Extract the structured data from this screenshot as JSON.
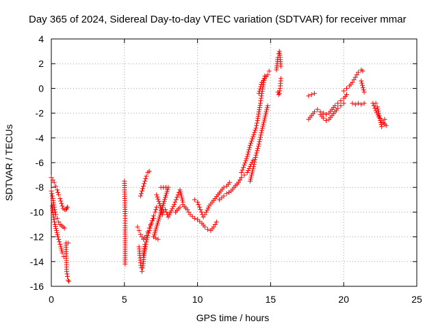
{
  "chart_data": {
    "type": "scatter",
    "title": "Day 365 of 2024, Sidereal Day-to-day VTEC variation (SDTVAR) for receiver mmar",
    "xlabel": "GPS time / hours",
    "ylabel": "SDTVAR / TECUs",
    "xlim": [
      0,
      25
    ],
    "ylim": [
      -16,
      4
    ],
    "xticks": [
      0,
      5,
      10,
      15,
      20,
      25
    ],
    "yticks": [
      -16,
      -14,
      -12,
      -10,
      -8,
      -6,
      -4,
      -2,
      0,
      2,
      4
    ],
    "grid": true,
    "marker": "plus",
    "color": "#ff0000",
    "segments": [
      {
        "x": [
          0.0,
          0.1,
          0.2,
          0.3,
          0.4,
          0.5,
          0.6,
          0.7,
          0.8,
          0.9,
          1.0,
          1.05,
          1.1
        ],
        "y": [
          -7.2,
          -7.4,
          -7.6,
          -7.9,
          -8.2,
          -8.6,
          -8.9,
          -9.3,
          -9.7,
          -9.8,
          -9.8,
          -9.7,
          -9.6
        ]
      },
      {
        "x": [
          0.0,
          0.1,
          0.2,
          0.3,
          0.4,
          0.5,
          0.6,
          0.7,
          0.8,
          0.9
        ],
        "y": [
          -8.3,
          -8.9,
          -9.6,
          -10.2,
          -10.5,
          -10.8,
          -11.0,
          -11.1,
          -11.2,
          -11.3
        ]
      },
      {
        "x": [
          0.05,
          0.15,
          0.25,
          0.35,
          0.45,
          0.55,
          0.65,
          0.75,
          0.85
        ],
        "y": [
          -9.5,
          -10.4,
          -11.0,
          -11.5,
          -12.0,
          -12.4,
          -12.8,
          -13.3,
          -13.6
        ]
      },
      {
        "x": [
          1.0,
          1.05,
          1.1,
          1.15,
          1.2
        ],
        "y": [
          -12.5,
          -14.8,
          -15.2,
          -15.5,
          -15.6
        ]
      },
      {
        "x": [
          1.15
        ],
        "y": [
          -12.5
        ]
      },
      {
        "x": [
          5.0,
          5.05,
          5.05,
          5.05,
          5.05
        ],
        "y": [
          -7.5,
          -10.3,
          -10.9,
          -11.1,
          -14.2
        ]
      },
      {
        "x": [
          5.9,
          6.0,
          6.1,
          6.2,
          6.3,
          6.4,
          6.5,
          6.6,
          6.7,
          6.8,
          6.9,
          7.0
        ],
        "y": [
          -11.2,
          -11.5,
          -11.8,
          -12.0,
          -12.2,
          -12.1,
          -11.9,
          -11.6,
          -11.3,
          -11.0,
          -10.7,
          -10.5
        ]
      },
      {
        "x": [
          6.0,
          6.05,
          6.1,
          6.15,
          6.2,
          6.25,
          6.3,
          6.35,
          6.4
        ],
        "y": [
          -12.8,
          -13.5,
          -14.1,
          -14.5,
          -14.8,
          -14.5,
          -14.0,
          -13.3,
          -12.6
        ]
      },
      {
        "x": [
          6.1,
          6.2,
          6.3,
          6.4,
          6.5,
          6.6,
          6.7
        ],
        "y": [
          -8.7,
          -8.3,
          -7.9,
          -7.5,
          -7.1,
          -6.8,
          -6.7
        ]
      },
      {
        "x": [
          6.3,
          6.4,
          6.5,
          6.6,
          6.7,
          6.8,
          6.9,
          7.0,
          7.1,
          7.2
        ],
        "y": [
          -13.5,
          -13.0,
          -12.4,
          -11.9,
          -11.5,
          -11.1,
          -10.7,
          -10.3,
          -10.0,
          -9.6
        ]
      },
      {
        "x": [
          7.2,
          7.4,
          7.6,
          7.8,
          8.0,
          8.2,
          8.4,
          8.6,
          8.8,
          9.0
        ],
        "y": [
          -8.6,
          -9.3,
          -10.2,
          -9.8,
          -10.4,
          -9.9,
          -9.4,
          -8.8,
          -8.2,
          -9.2
        ]
      },
      {
        "x": [
          7.5,
          8.0,
          7.0,
          7.3
        ],
        "y": [
          -8.0,
          -8.0,
          -12.0,
          -12.2
        ]
      },
      {
        "x": [
          8.5,
          8.8,
          9.0,
          9.3,
          9.5,
          9.8,
          10.0,
          10.3,
          10.5,
          10.7,
          10.9,
          11.1,
          11.3
        ],
        "y": [
          -10.0,
          -9.6,
          -9.4,
          -9.8,
          -10.2,
          -10.5,
          -10.6,
          -10.9,
          -11.2,
          -11.4,
          -11.5,
          -11.2,
          -10.8
        ]
      },
      {
        "x": [
          9.8,
          10.0,
          10.2,
          10.4,
          10.6,
          10.8,
          11.0,
          11.2,
          11.4,
          11.6,
          11.8,
          12.0,
          12.2
        ],
        "y": [
          -9.0,
          -9.2,
          -9.8,
          -10.4,
          -10.0,
          -9.5,
          -9.2,
          -8.9,
          -8.6,
          -8.3,
          -8.0,
          -7.9,
          -7.6
        ]
      },
      {
        "x": [
          11.5,
          11.8,
          12.0,
          12.3,
          12.5,
          12.8,
          13.0,
          13.2,
          13.4,
          13.6,
          13.8
        ],
        "y": [
          -9.0,
          -8.7,
          -8.5,
          -8.3,
          -8.0,
          -7.6,
          -7.2,
          -7.0,
          -6.8,
          -6.3,
          -5.8
        ]
      },
      {
        "x": [
          13.0,
          13.2,
          13.4,
          13.6,
          13.8,
          14.0,
          14.1,
          14.2,
          14.3,
          14.4,
          14.5,
          14.6
        ],
        "y": [
          -6.8,
          -6.2,
          -5.5,
          -4.6,
          -3.9,
          -3.2,
          -2.6,
          -1.9,
          -1.2,
          -0.4,
          0.3,
          1.0
        ]
      },
      {
        "x": [
          13.6,
          13.8,
          14.0,
          14.2,
          14.4,
          14.6,
          14.8
        ],
        "y": [
          -7.5,
          -6.5,
          -5.4,
          -4.5,
          -3.4,
          -2.4,
          -1.4
        ]
      },
      {
        "x": [
          14.2,
          14.4,
          14.6,
          14.8,
          14.9
        ],
        "y": [
          -0.4,
          0.5,
          0.8,
          1.1,
          1.4
        ]
      },
      {
        "x": [
          15.4,
          15.45,
          15.5,
          15.55,
          15.6,
          15.65,
          15.7
        ],
        "y": [
          1.5,
          2.0,
          2.5,
          2.8,
          3.0,
          2.5,
          1.8
        ]
      },
      {
        "x": [
          15.5,
          15.55,
          15.6,
          15.65,
          15.7
        ],
        "y": [
          -0.3,
          -0.5,
          -0.4,
          0.0,
          0.8
        ]
      },
      {
        "x": [
          17.6,
          17.8,
          18.0
        ],
        "y": [
          -0.6,
          -0.5,
          -0.4
        ]
      },
      {
        "x": [
          17.6,
          17.8,
          18.0,
          18.2,
          18.4,
          18.6,
          18.8,
          19.0,
          19.2,
          19.4,
          19.6,
          19.8,
          20.0,
          20.2
        ],
        "y": [
          -2.5,
          -2.2,
          -1.9,
          -1.7,
          -1.9,
          -2.0,
          -2.1,
          -2.0,
          -1.7,
          -1.4,
          -1.2,
          -1.0,
          -0.8,
          -0.5
        ]
      },
      {
        "x": [
          18.4,
          18.6,
          18.8,
          19.0,
          19.2,
          19.4,
          19.6,
          19.8,
          20.0
        ],
        "y": [
          -2.1,
          -2.4,
          -2.6,
          -2.5,
          -2.2,
          -1.9,
          -1.6,
          -1.4,
          -1.2
        ]
      },
      {
        "x": [
          20.0,
          20.2,
          20.4,
          20.6,
          20.8,
          21.0,
          21.2,
          21.3
        ],
        "y": [
          -0.2,
          0.0,
          0.2,
          0.5,
          0.9,
          1.3,
          1.5,
          1.4
        ]
      },
      {
        "x": [
          20.6,
          20.8,
          21.0,
          21.2,
          21.4
        ],
        "y": [
          -1.2,
          -1.3,
          -1.2,
          -1.3,
          -1.2
        ]
      },
      {
        "x": [
          21.2,
          21.4
        ],
        "y": [
          0.6,
          -0.3
        ]
      },
      {
        "x": [
          22.0,
          22.2,
          22.4,
          22.6,
          22.8,
          22.9
        ],
        "y": [
          -1.2,
          -1.8,
          -2.3,
          -2.6,
          -2.9,
          -3.0
        ]
      },
      {
        "x": [
          22.2,
          22.3,
          22.4,
          22.5,
          22.6,
          22.7,
          22.8
        ],
        "y": [
          -1.2,
          -1.5,
          -2.0,
          -2.6,
          -3.1,
          -2.8,
          -2.5
        ]
      }
    ]
  }
}
